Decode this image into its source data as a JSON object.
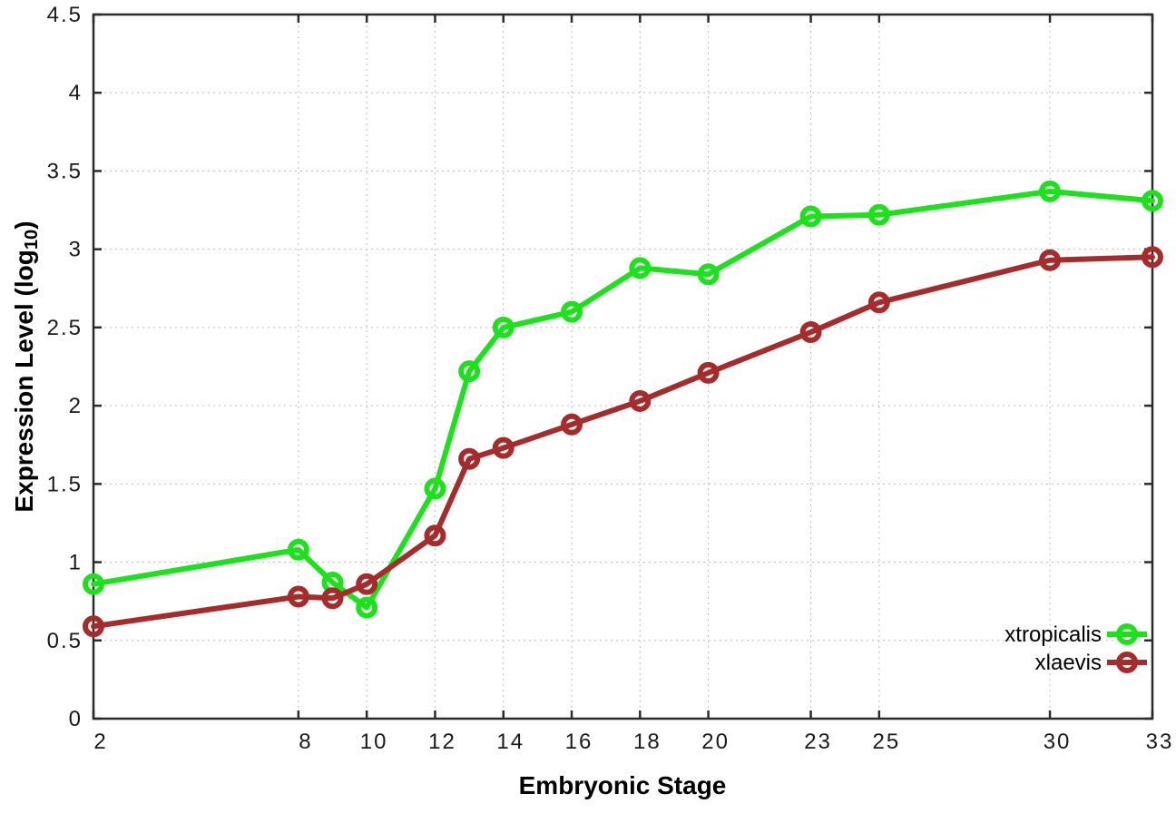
{
  "figure": {
    "background": "#ffffff",
    "border_color": "#2b2b2b",
    "grid_color": "#bcbcbc",
    "tick_label_color": "#1a1a1a"
  },
  "labels": {
    "xlabel": "Embryonic Stage",
    "ylabel_pre": "Expression Level (log",
    "ylabel_sub": "10",
    "ylabel_post": ")"
  },
  "chart_data": {
    "type": "line",
    "title": "",
    "xlabel": "Embryonic Stage",
    "ylabel": "Expression Level (log10)",
    "xlim": [
      2,
      33
    ],
    "ylim": [
      0,
      4.5
    ],
    "grid": true,
    "legend_position": "bottom-right-inside",
    "x_ticks": [
      2,
      8,
      10,
      12,
      14,
      16,
      18,
      20,
      23,
      25,
      30,
      33
    ],
    "y_ticks": [
      0,
      0.5,
      1,
      1.5,
      2,
      2.5,
      3,
      3.5,
      4,
      4.5
    ],
    "x": [
      2,
      8,
      9,
      10,
      12,
      13,
      14,
      16,
      18,
      20,
      23,
      25,
      30,
      33
    ],
    "series": [
      {
        "name": "xtropicalis",
        "color": "#1ee11e",
        "marker": "open-circle",
        "values": [
          0.86,
          1.08,
          0.87,
          0.71,
          1.47,
          2.22,
          2.5,
          2.6,
          2.88,
          2.84,
          3.21,
          3.22,
          3.37,
          3.31
        ]
      },
      {
        "name": "xlaevis",
        "color": "#a52c2c",
        "marker": "open-circle",
        "values": [
          0.59,
          0.78,
          0.77,
          0.86,
          1.17,
          1.66,
          1.73,
          1.88,
          2.03,
          2.21,
          2.47,
          2.66,
          2.93,
          2.95
        ]
      }
    ]
  }
}
